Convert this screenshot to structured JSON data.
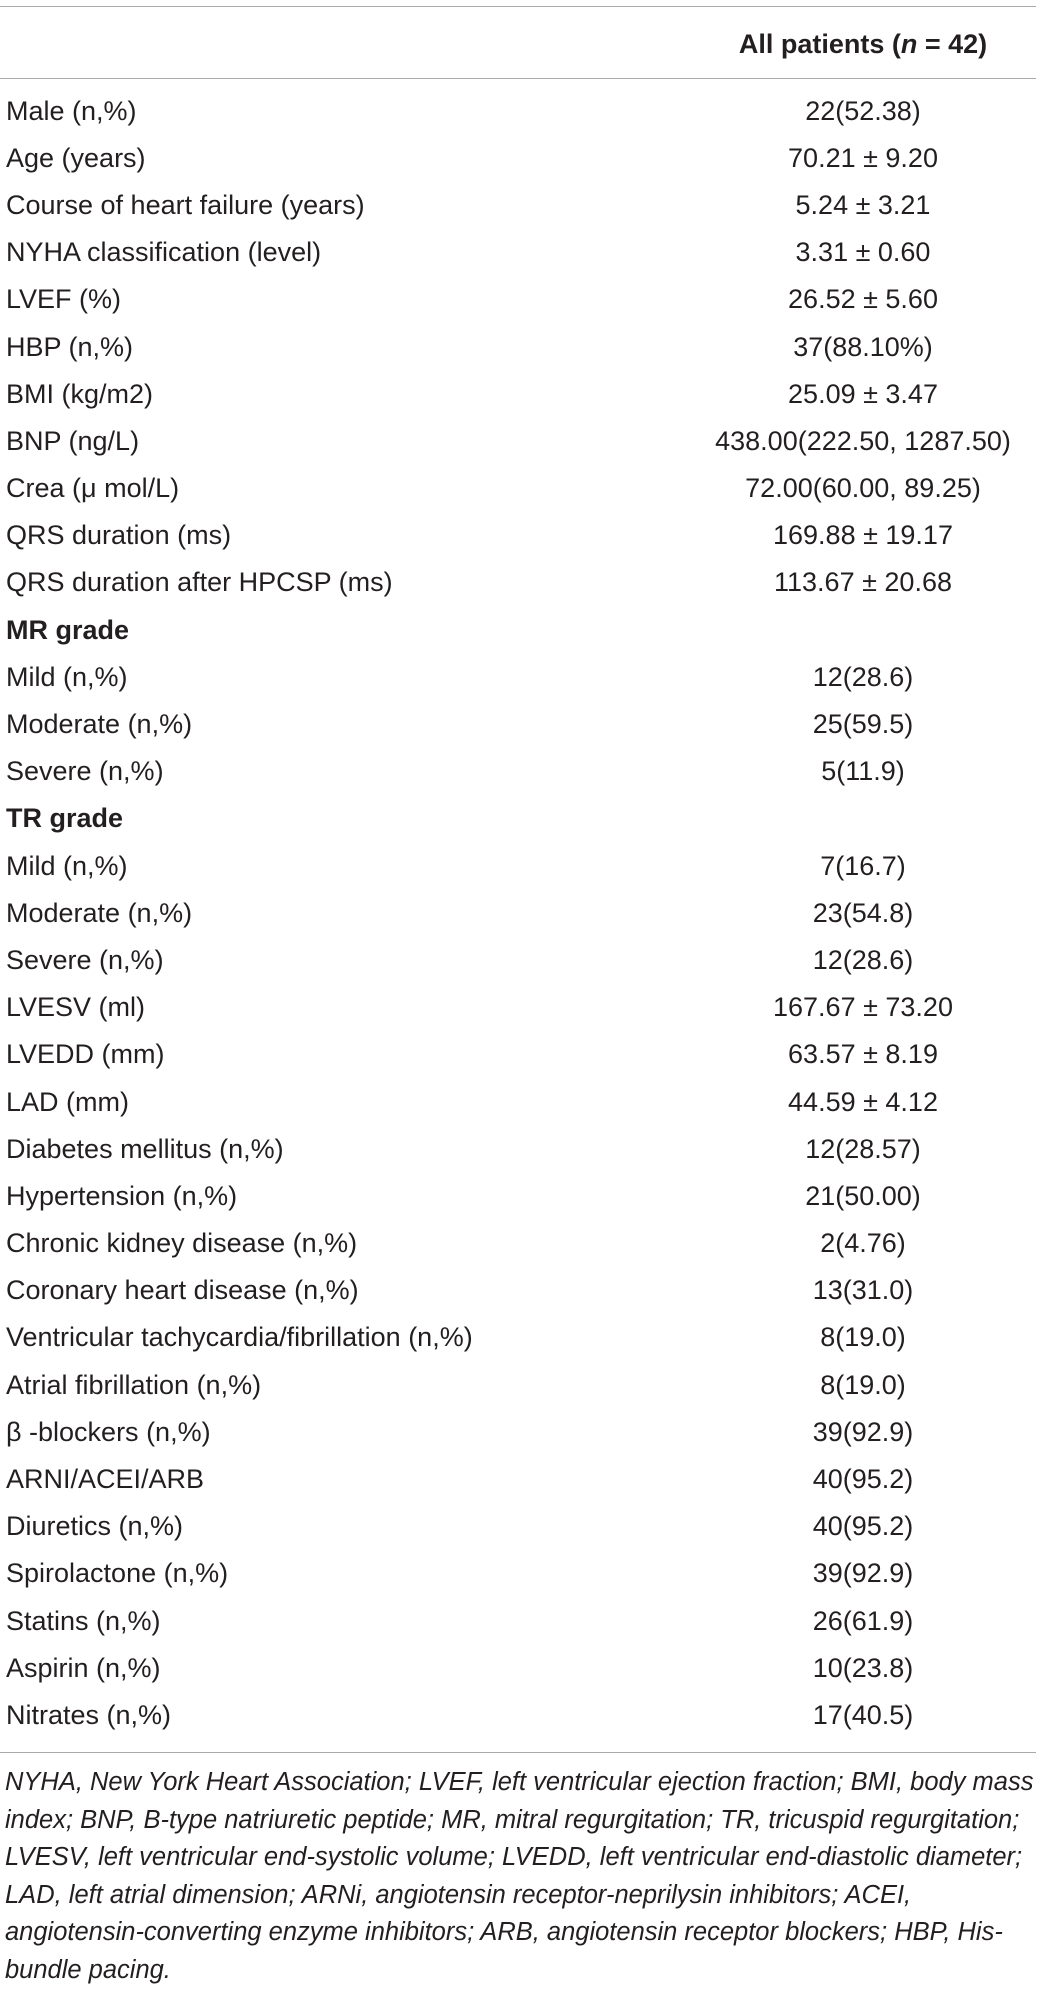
{
  "table": {
    "header": {
      "col_label": "",
      "col_value_prefix": "All patients (",
      "col_value_n": "n",
      "col_value_suffix": " = 42)"
    },
    "rows": [
      {
        "label": "Male (n,%)",
        "value": "22(52.38)",
        "section": false
      },
      {
        "label": "Age (years)",
        "value": "70.21 ± 9.20",
        "section": false
      },
      {
        "label": "Course of heart failure (years)",
        "value": "5.24 ± 3.21",
        "section": false
      },
      {
        "label": "NYHA classification (level)",
        "value": "3.31 ± 0.60",
        "section": false
      },
      {
        "label": "LVEF (%)",
        "value": "26.52 ± 5.60",
        "section": false
      },
      {
        "label": "HBP (n,%)",
        "value": "37(88.10%)",
        "section": false
      },
      {
        "label": "BMI (kg/m2)",
        "value": "25.09 ± 3.47",
        "section": false
      },
      {
        "label": "BNP (ng/L)",
        "value": "438.00(222.50, 1287.50)",
        "section": false
      },
      {
        "label": "Crea (μ mol/L)",
        "value": "72.00(60.00, 89.25)",
        "section": false
      },
      {
        "label": "QRS duration (ms)",
        "value": "169.88 ± 19.17",
        "section": false
      },
      {
        "label": "QRS duration after HPCSP (ms)",
        "value": "113.67 ± 20.68",
        "section": false
      },
      {
        "label": "MR grade",
        "value": "",
        "section": true
      },
      {
        "label": "Mild (n,%)",
        "value": "12(28.6)",
        "section": false
      },
      {
        "label": "Moderate (n,%)",
        "value": "25(59.5)",
        "section": false
      },
      {
        "label": "Severe (n,%)",
        "value": "5(11.9)",
        "section": false
      },
      {
        "label": "TR grade",
        "value": "",
        "section": true
      },
      {
        "label": "Mild (n,%)",
        "value": "7(16.7)",
        "section": false
      },
      {
        "label": "Moderate (n,%)",
        "value": "23(54.8)",
        "section": false
      },
      {
        "label": "Severe (n,%)",
        "value": "12(28.6)",
        "section": false
      },
      {
        "label": "LVESV (ml)",
        "value": "167.67 ± 73.20",
        "section": false
      },
      {
        "label": "LVEDD (mm)",
        "value": "63.57 ± 8.19",
        "section": false
      },
      {
        "label": "LAD (mm)",
        "value": "44.59 ± 4.12",
        "section": false
      },
      {
        "label": "Diabetes mellitus (n,%)",
        "value": "12(28.57)",
        "section": false
      },
      {
        "label": "Hypertension (n,%)",
        "value": "21(50.00)",
        "section": false
      },
      {
        "label": "Chronic kidney disease (n,%)",
        "value": "2(4.76)",
        "section": false
      },
      {
        "label": "Coronary heart disease (n,%)",
        "value": "13(31.0)",
        "section": false
      },
      {
        "label": "Ventricular tachycardia/fibrillation (n,%)",
        "value": "8(19.0)",
        "section": false
      },
      {
        "label": "Atrial fibrillation (n,%)",
        "value": "8(19.0)",
        "section": false
      },
      {
        "label": "β -blockers (n,%)",
        "value": "39(92.9)",
        "section": false
      },
      {
        "label": "ARNI/ACEI/ARB",
        "value": "40(95.2)",
        "section": false
      },
      {
        "label": "Diuretics (n,%)",
        "value": "40(95.2)",
        "section": false
      },
      {
        "label": "Spirolactone (n,%)",
        "value": "39(92.9)",
        "section": false
      },
      {
        "label": "Statins (n,%)",
        "value": "26(61.9)",
        "section": false
      },
      {
        "label": "Aspirin (n,%)",
        "value": "10(23.8)",
        "section": false
      },
      {
        "label": "Nitrates (n,%)",
        "value": "17(40.5)",
        "section": false
      }
    ]
  },
  "footnote": "NYHA, New York Heart Association; LVEF, left ventricular ejection fraction; BMI, body mass index; BNP, B-type natriuretic peptide; MR, mitral regurgitation; TR, tricuspid regurgitation; LVESV, left ventricular end-systolic volume; LVEDD, left ventricular end-diastolic diameter; LAD, left atrial dimension; ARNi, angiotensin receptor-neprilysin inhibitors; ACEI, angiotensin-converting enzyme inhibitors; ARB, angiotensin receptor blockers; HBP, His-bundle pacing."
}
